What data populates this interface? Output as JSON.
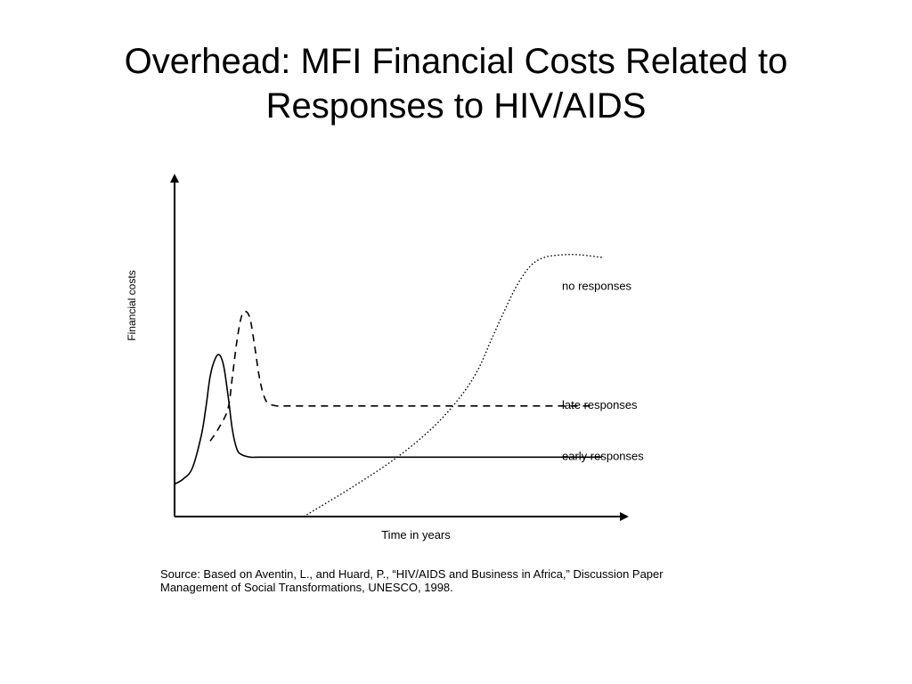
{
  "slide": {
    "title_line1": "Overhead:  MFI Financial Costs Related to",
    "title_line2": "Responses to HIV/AIDS",
    "source_line1": "Source: Based on Aventin, L., and Huard, P., “HIV/AIDS and Business in Africa,” Discussion Paper",
    "source_line2": "Management of Social Transformations, UNESCO, 1998."
  },
  "chart_data": {
    "type": "line",
    "title": "",
    "xlabel": "Time in years",
    "ylabel": "Financial costs",
    "xlim": [
      0,
      100
    ],
    "ylim": [
      0,
      100
    ],
    "grid": false,
    "legend": "inline labels at right end of curves",
    "series": [
      {
        "name": "early responses",
        "style": "solid",
        "x": [
          0,
          2,
          4,
          6,
          7,
          8,
          9,
          10,
          11,
          12,
          13,
          14,
          15,
          17,
          19,
          25,
          40,
          60,
          80,
          96
        ],
        "y": [
          12,
          14,
          18,
          30,
          40,
          52,
          58,
          60,
          56,
          45,
          32,
          25,
          23,
          22,
          22,
          22,
          22,
          22,
          22,
          22
        ]
      },
      {
        "name": "late responses",
        "style": "dashed",
        "x": [
          8,
          10,
          12,
          13,
          14,
          15,
          16,
          17,
          18,
          19,
          20,
          21,
          23,
          25,
          30,
          50,
          70,
          94
        ],
        "y": [
          28,
          33,
          40,
          52,
          65,
          74,
          76,
          73,
          63,
          52,
          45,
          42,
          41,
          41,
          41,
          41,
          41,
          41
        ]
      },
      {
        "name": "no responses",
        "style": "dotted",
        "x": [
          29,
          40,
          50,
          58,
          64,
          68,
          71,
          74,
          77,
          80,
          83,
          87,
          91,
          96
        ],
        "y": [
          0,
          11,
          22,
          33,
          44,
          54,
          65,
          76,
          86,
          93,
          96,
          97,
          97,
          96
        ]
      }
    ],
    "label_placement": [
      {
        "text": "no responses",
        "x": 87,
        "y": 84
      },
      {
        "text": "late responses",
        "x": 87,
        "y": 40
      },
      {
        "text": "early responses",
        "x": 87,
        "y": 21
      }
    ],
    "colors": {
      "line": "#000000"
    }
  }
}
